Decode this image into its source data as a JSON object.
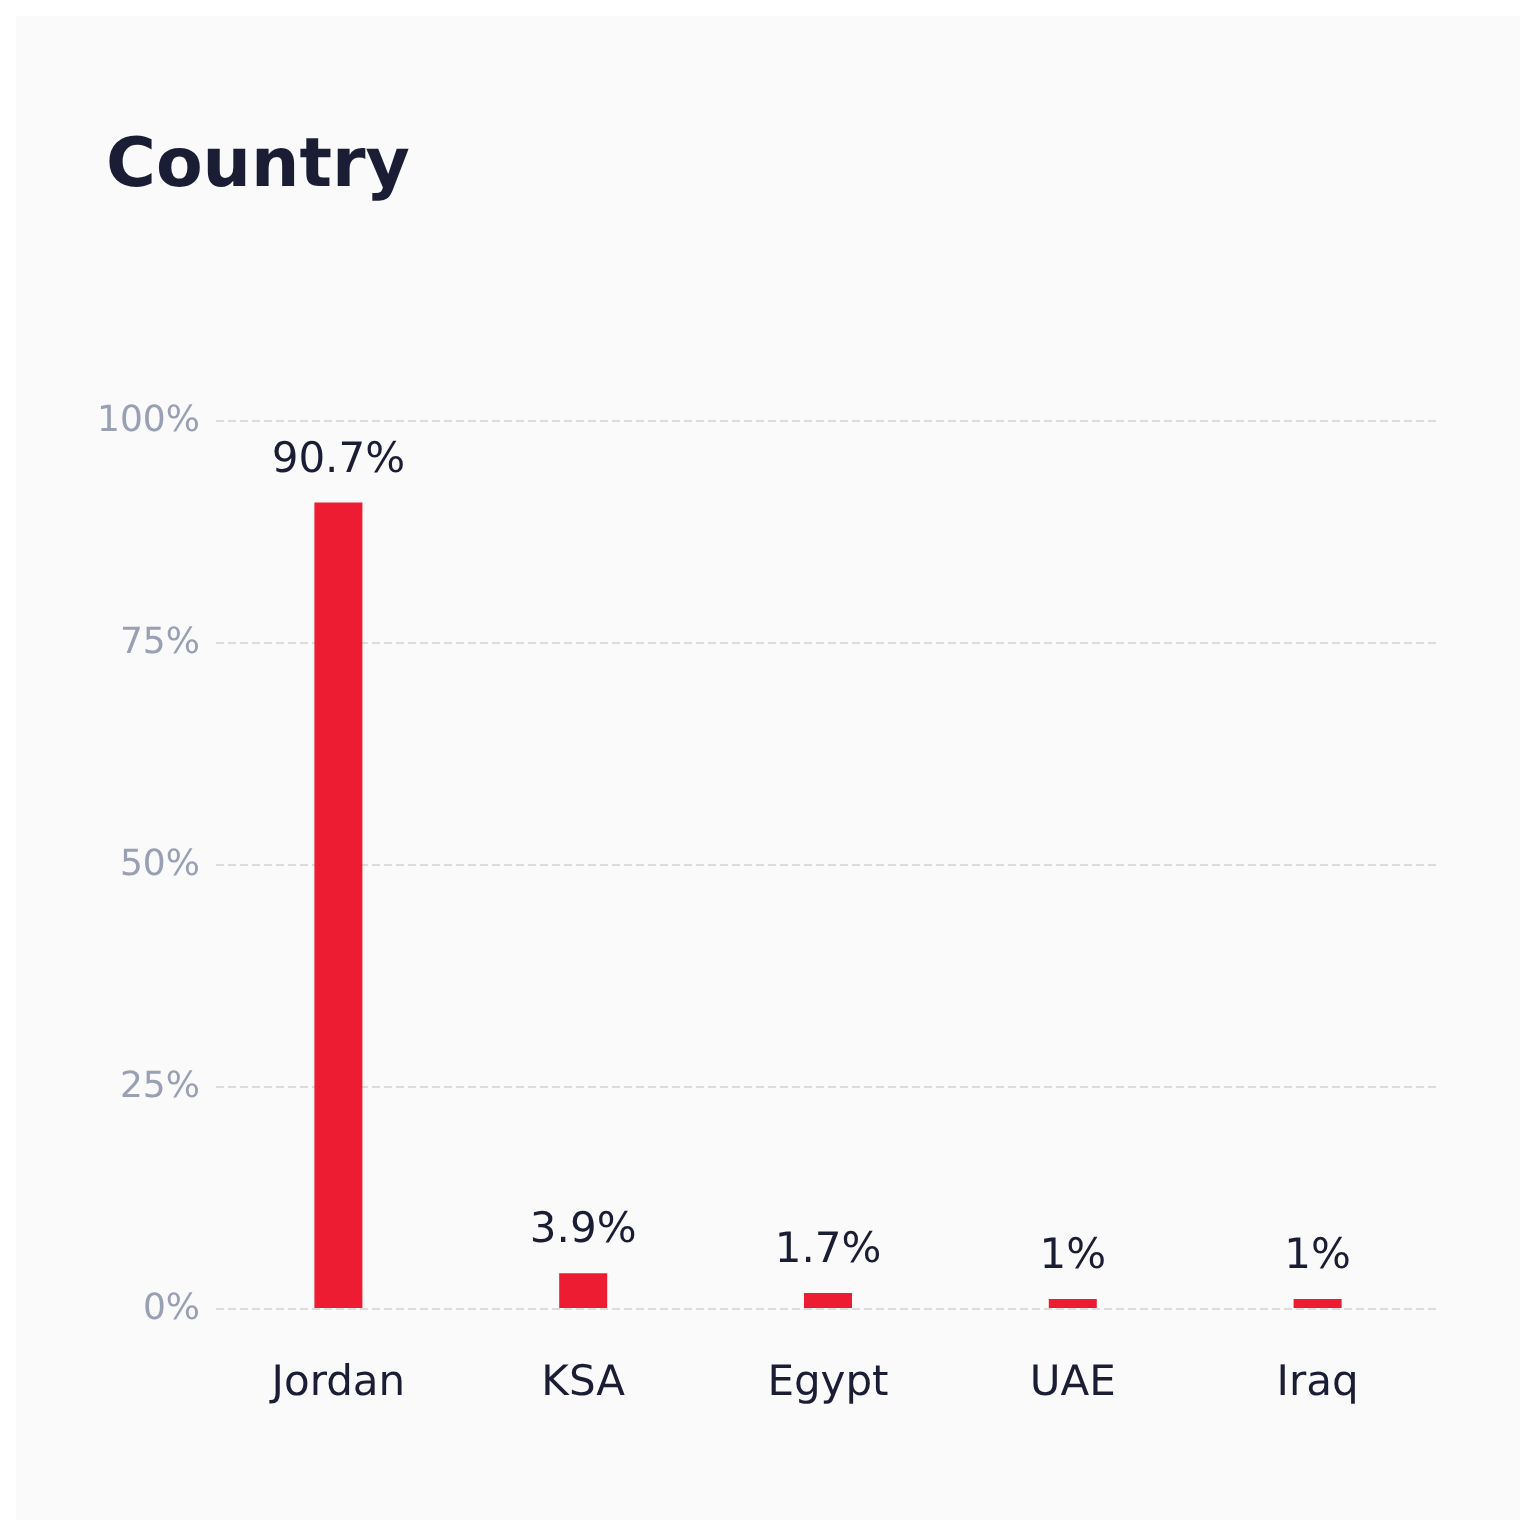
{
  "chart_data": {
    "type": "bar",
    "title": "Country",
    "categories": [
      "Jordan",
      "KSA",
      "Egypt",
      "UAE",
      "Iraq"
    ],
    "values": [
      90.7,
      3.9,
      1.7,
      1,
      1
    ],
    "value_labels": [
      "90.7%",
      "3.9%",
      "1.7%",
      "1%",
      "1%"
    ],
    "color": "#ee1c33",
    "ylim": [
      0,
      100
    ],
    "yticks": [
      {
        "value": 0,
        "label": "0%"
      },
      {
        "value": 25,
        "label": "25%"
      },
      {
        "value": 50,
        "label": "50%"
      },
      {
        "value": 75,
        "label": "75%"
      },
      {
        "value": 100,
        "label": "100%"
      }
    ],
    "grid": "y"
  }
}
